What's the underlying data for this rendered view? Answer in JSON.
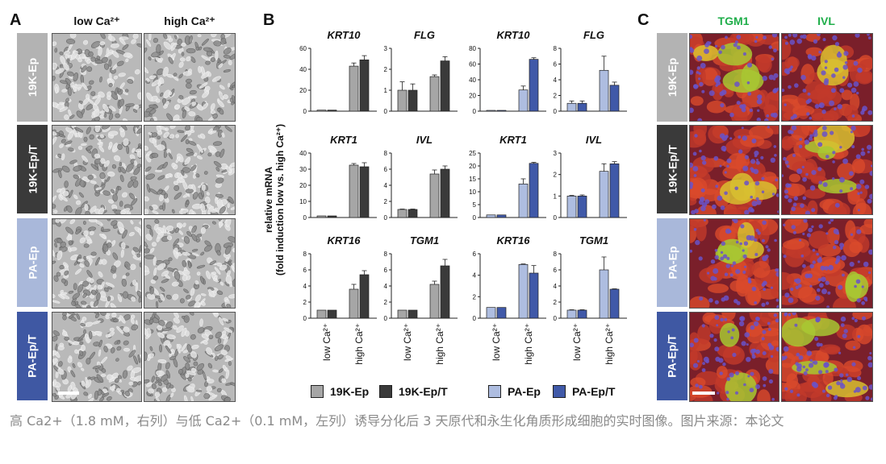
{
  "panels": {
    "a": "A",
    "b": "B",
    "c": "C"
  },
  "panel_a": {
    "col_headers": [
      "low Ca²⁺",
      "high Ca²⁺"
    ],
    "rows": [
      "19K-Ep",
      "19K-Ep/T",
      "PA-Ep",
      "PA-Ep/T"
    ]
  },
  "panel_c": {
    "col_headers": [
      "TGM1",
      "IVL"
    ],
    "rows": [
      "19K-Ep",
      "19K-Ep/T",
      "PA-Ep",
      "PA-Ep/T"
    ]
  },
  "row_colors": [
    "#b3b3b3",
    "#3a3a3a",
    "#a9b8da",
    "#3f58a3"
  ],
  "series_colors": {
    "19K-Ep": "#a6a6a6",
    "19K-Ep/T": "#3a3a3a",
    "PA-Ep": "#aebde0",
    "PA-Ep/T": "#4059a8"
  },
  "y_axis_label": [
    "relative mRNA",
    "(fold induction low vs. high Ca²⁺)"
  ],
  "x_categories": [
    "low Ca²⁺",
    "high Ca²⁺"
  ],
  "legend": [
    "19K-Ep",
    "19K-Ep/T",
    "PA-Ep",
    "PA-Ep/T"
  ],
  "caption": "高 Ca2+（1.8 mM，右列）与低 Ca2+（0.1 mM，左列）诱导分化后 3 天原代和永生化角质形成细胞的实时图像。图片来源：本论文",
  "chart_data": [
    {
      "type": "bar",
      "title": "KRT10",
      "categories": [
        "low Ca²⁺",
        "high Ca²⁺"
      ],
      "ylim": [
        0,
        60
      ],
      "yticks": [
        0,
        20,
        40,
        60
      ],
      "series": [
        {
          "name": "19K-Ep",
          "values": [
            1,
            43
          ],
          "err": [
            0,
            3
          ]
        },
        {
          "name": "19K-Ep/T",
          "values": [
            1,
            49
          ],
          "err": [
            0,
            4
          ]
        }
      ]
    },
    {
      "type": "bar",
      "title": "FLG",
      "categories": [
        "low Ca²⁺",
        "high Ca²⁺"
      ],
      "ylim": [
        0,
        3
      ],
      "yticks": [
        0,
        1,
        2,
        3
      ],
      "series": [
        {
          "name": "19K-Ep",
          "values": [
            1,
            1.65
          ],
          "err": [
            0.4,
            0.08
          ]
        },
        {
          "name": "19K-Ep/T",
          "values": [
            1,
            2.4
          ],
          "err": [
            0.3,
            0.2
          ]
        }
      ]
    },
    {
      "type": "bar",
      "title": "KRT10",
      "categories": [
        "low Ca²⁺",
        "high Ca²⁺"
      ],
      "ylim": [
        0,
        80
      ],
      "yticks": [
        0,
        20,
        40,
        60,
        80
      ],
      "series": [
        {
          "name": "PA-Ep",
          "values": [
            1,
            27
          ],
          "err": [
            0,
            5
          ]
        },
        {
          "name": "PA-Ep/T",
          "values": [
            1,
            66
          ],
          "err": [
            0,
            2
          ]
        }
      ]
    },
    {
      "type": "bar",
      "title": "FLG",
      "categories": [
        "low Ca²⁺",
        "high Ca²⁺"
      ],
      "ylim": [
        0,
        8
      ],
      "yticks": [
        0,
        2,
        4,
        6,
        8
      ],
      "series": [
        {
          "name": "PA-Ep",
          "values": [
            1,
            5.2
          ],
          "err": [
            0.3,
            1.8
          ]
        },
        {
          "name": "PA-Ep/T",
          "values": [
            1,
            3.3
          ],
          "err": [
            0.3,
            0.4
          ]
        }
      ]
    },
    {
      "type": "bar",
      "title": "KRT1",
      "categories": [
        "low Ca²⁺",
        "high Ca²⁺"
      ],
      "ylim": [
        0,
        40
      ],
      "yticks": [
        0,
        10,
        20,
        30,
        40
      ],
      "series": [
        {
          "name": "19K-Ep",
          "values": [
            1,
            32.5
          ],
          "err": [
            0,
            1
          ]
        },
        {
          "name": "19K-Ep/T",
          "values": [
            1,
            31.5
          ],
          "err": [
            0,
            2.5
          ]
        }
      ]
    },
    {
      "type": "bar",
      "title": "IVL",
      "categories": [
        "low Ca²⁺",
        "high Ca²⁺"
      ],
      "ylim": [
        0,
        8
      ],
      "yticks": [
        0,
        2,
        4,
        6,
        8
      ],
      "series": [
        {
          "name": "19K-Ep",
          "values": [
            1,
            5.4
          ],
          "err": [
            0.05,
            0.5
          ]
        },
        {
          "name": "19K-Ep/T",
          "values": [
            1,
            6
          ],
          "err": [
            0.05,
            0.4
          ]
        }
      ]
    },
    {
      "type": "bar",
      "title": "KRT1",
      "categories": [
        "low Ca²⁺",
        "high Ca²⁺"
      ],
      "ylim": [
        0,
        25
      ],
      "yticks": [
        0,
        5,
        10,
        15,
        20,
        25
      ],
      "series": [
        {
          "name": "PA-Ep",
          "values": [
            1,
            13
          ],
          "err": [
            0,
            2
          ]
        },
        {
          "name": "PA-Ep/T",
          "values": [
            1,
            21
          ],
          "err": [
            0,
            0.4
          ]
        }
      ]
    },
    {
      "type": "bar",
      "title": "IVL",
      "categories": [
        "low Ca²⁺",
        "high Ca²⁺"
      ],
      "ylim": [
        0,
        3
      ],
      "yticks": [
        0,
        1,
        2,
        3
      ],
      "series": [
        {
          "name": "PA-Ep",
          "values": [
            1,
            2.15
          ],
          "err": [
            0.03,
            0.35
          ]
        },
        {
          "name": "PA-Ep/T",
          "values": [
            1,
            2.5
          ],
          "err": [
            0.05,
            0.1
          ]
        }
      ]
    },
    {
      "type": "bar",
      "title": "KRT16",
      "categories": [
        "low Ca²⁺",
        "high Ca²⁺"
      ],
      "ylim": [
        0,
        8
      ],
      "yticks": [
        0,
        2,
        4,
        6,
        8
      ],
      "series": [
        {
          "name": "19K-Ep",
          "values": [
            1,
            3.6
          ],
          "err": [
            0,
            0.6
          ]
        },
        {
          "name": "19K-Ep/T",
          "values": [
            1,
            5.4
          ],
          "err": [
            0,
            0.5
          ]
        }
      ]
    },
    {
      "type": "bar",
      "title": "TGM1",
      "categories": [
        "low Ca²⁺",
        "high Ca²⁺"
      ],
      "ylim": [
        0,
        8
      ],
      "yticks": [
        0,
        2,
        4,
        6,
        8
      ],
      "series": [
        {
          "name": "19K-Ep",
          "values": [
            1,
            4.2
          ],
          "err": [
            0,
            0.4
          ]
        },
        {
          "name": "19K-Ep/T",
          "values": [
            1,
            6.5
          ],
          "err": [
            0,
            0.8
          ]
        }
      ]
    },
    {
      "type": "bar",
      "title": "KRT16",
      "categories": [
        "low Ca²⁺",
        "high Ca²⁺"
      ],
      "ylim": [
        0,
        6
      ],
      "yticks": [
        0,
        2,
        4,
        6
      ],
      "series": [
        {
          "name": "PA-Ep",
          "values": [
            1,
            5
          ],
          "err": [
            0,
            0.05
          ]
        },
        {
          "name": "PA-Ep/T",
          "values": [
            1,
            4.2
          ],
          "err": [
            0,
            0.7
          ]
        }
      ]
    },
    {
      "type": "bar",
      "title": "TGM1",
      "categories": [
        "low Ca²⁺",
        "high Ca²⁺"
      ],
      "ylim": [
        0,
        8
      ],
      "yticks": [
        0,
        2,
        4,
        6,
        8
      ],
      "series": [
        {
          "name": "PA-Ep",
          "values": [
            1,
            6
          ],
          "err": [
            0.05,
            1.6
          ]
        },
        {
          "name": "PA-Ep/T",
          "values": [
            1,
            3.6
          ],
          "err": [
            0.05,
            0.05
          ]
        }
      ]
    }
  ]
}
